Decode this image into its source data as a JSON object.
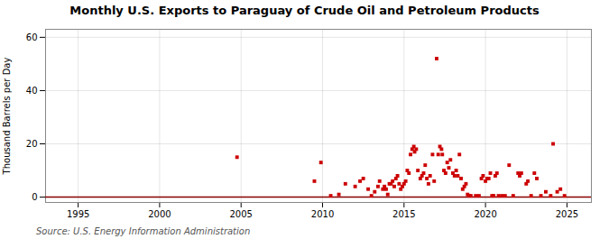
{
  "chart_data": {
    "type": "scatter",
    "title": "Monthly U.S. Exports to Paraguay of Crude Oil and Petroleum Products",
    "ylabel": "Thousand Barrels per Day",
    "source": "Source: U.S. Energy Information Administration",
    "x": [
      2004.75,
      2009.5,
      2009.9,
      2010.5,
      2011.0,
      2011.4,
      2012.0,
      2012.3,
      2012.5,
      2012.8,
      2013.0,
      2013.2,
      2013.4,
      2013.5,
      2013.7,
      2013.8,
      2013.9,
      2014.0,
      2014.1,
      2014.2,
      2014.3,
      2014.4,
      2014.5,
      2014.6,
      2014.7,
      2014.8,
      2014.9,
      2015.0,
      2015.1,
      2015.2,
      2015.3,
      2015.4,
      2015.5,
      2015.6,
      2015.65,
      2015.75,
      2015.85,
      2016.0,
      2016.1,
      2016.2,
      2016.3,
      2016.4,
      2016.5,
      2016.6,
      2016.75,
      2016.85,
      2017.0,
      2017.1,
      2017.2,
      2017.3,
      2017.35,
      2017.45,
      2017.55,
      2017.65,
      2017.75,
      2017.85,
      2018.0,
      2018.1,
      2018.2,
      2018.3,
      2018.4,
      2018.5,
      2018.6,
      2018.7,
      2018.8,
      2018.9,
      2019.0,
      2019.1,
      2019.4,
      2019.6,
      2019.75,
      2019.85,
      2020.0,
      2020.1,
      2020.2,
      2020.3,
      2020.4,
      2020.5,
      2020.6,
      2020.7,
      2020.8,
      2021.0,
      2021.2,
      2021.45,
      2021.7,
      2022.0,
      2022.1,
      2022.2,
      2022.5,
      2022.6,
      2022.8,
      2023.0,
      2023.15,
      2023.4,
      2023.7,
      2024.0,
      2024.15,
      2024.4,
      2024.6,
      2024.85
    ],
    "values": [
      15,
      6,
      13,
      0.5,
      1,
      5,
      4,
      6,
      7,
      3,
      0.5,
      2,
      4,
      6,
      3,
      4,
      3,
      1,
      5,
      5,
      6,
      4,
      7,
      8,
      5,
      3,
      4,
      5,
      6,
      10,
      9,
      16,
      18,
      19,
      17,
      18,
      10,
      7,
      8,
      9,
      12,
      7,
      5,
      8,
      16,
      6,
      52,
      16,
      19,
      18,
      16,
      10,
      9,
      13,
      11,
      14,
      9,
      8,
      10,
      8,
      16,
      7,
      3,
      4,
      5,
      1,
      0.5,
      0.5,
      0.5,
      0.5,
      7,
      8,
      6,
      7,
      7,
      9,
      0.5,
      0.5,
      8,
      9,
      0.5,
      0.5,
      0.5,
      12,
      0.5,
      9,
      8,
      9,
      5,
      6,
      0.5,
      9,
      7,
      0.5,
      2,
      0.5,
      20,
      2,
      3,
      0.5
    ],
    "color": "#cc0000",
    "marker": "square",
    "reference_lines": [
      {
        "y": 0,
        "color": "#8b0000"
      }
    ],
    "xlim": [
      1993.0,
      2026.5
    ],
    "ylim": [
      -2,
      63
    ],
    "xticks": [
      1995,
      2000,
      2005,
      2010,
      2015,
      2020,
      2025
    ],
    "yticks": [
      0,
      20,
      40,
      60
    ],
    "grid": true
  }
}
